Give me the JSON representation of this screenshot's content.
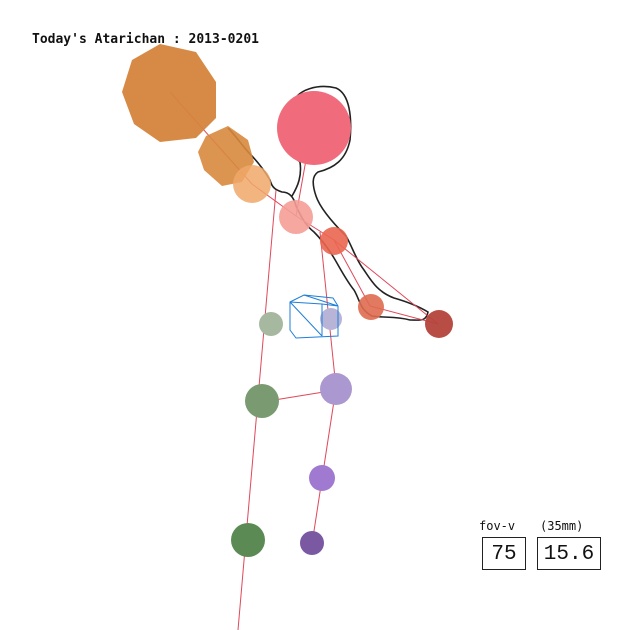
{
  "title": "Today's Atarichan : 2013-0201",
  "camera": {
    "fov_label": "fov-v",
    "lens_label": "(35mm)",
    "fov_value": "75",
    "focal_value": "15.6"
  },
  "colors": {
    "bone_line": "#e0485a",
    "outline": "#222222",
    "gizmo": "#1e7fd8",
    "head": "#f06c7c",
    "weapon_big": "#d5843c",
    "weapon_mid": "#d8883e",
    "weapon_small": "#f0a86a",
    "neck": "#f49d96",
    "shoulder": "#ea6650",
    "elbow": "#df6a50",
    "hand": "#b4433c",
    "hip_left": "#a6b8a0",
    "hip_right": "#b8b4d8",
    "knee_left": "#7a9a72",
    "knee_right": "#ac98d0",
    "ankle_right": "#a07ad0",
    "foot_left": "#5c8a54",
    "foot_right": "#7a58a2"
  }
}
